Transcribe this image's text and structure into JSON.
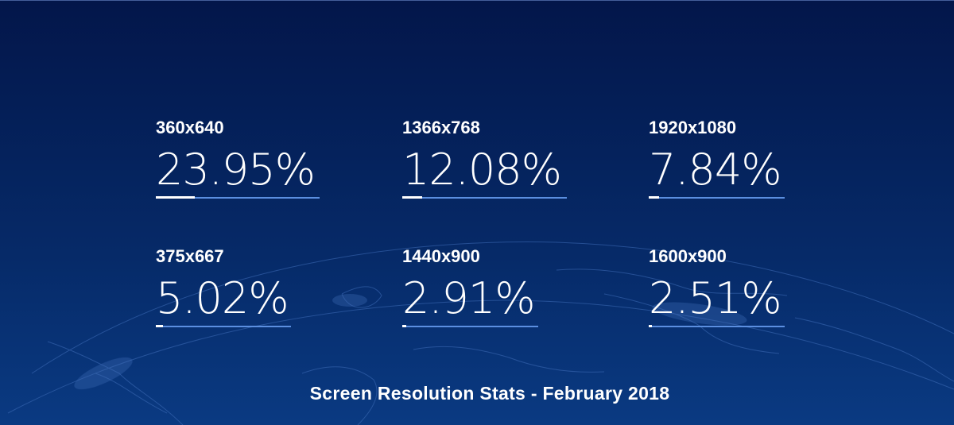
{
  "stats": [
    {
      "resolution": "360x640",
      "percent": "23.95%",
      "share_fraction": 0.2395
    },
    {
      "resolution": "1366x768",
      "percent": "12.08%",
      "share_fraction": 0.1208
    },
    {
      "resolution": "1920x1080",
      "percent": "7.84%",
      "share_fraction": 0.0784
    },
    {
      "resolution": "375x667",
      "percent": "5.02%",
      "share_fraction": 0.0502
    },
    {
      "resolution": "1440x900",
      "percent": "2.91%",
      "share_fraction": 0.0291
    },
    {
      "resolution": "1600x900",
      "percent": "2.51%",
      "share_fraction": 0.0251
    }
  ],
  "footer": {
    "caption": "Screen Resolution Stats - February 2018"
  },
  "colors": {
    "background": "#03164a",
    "accent_line": "#5b8fe0",
    "text": "#ffffff"
  }
}
